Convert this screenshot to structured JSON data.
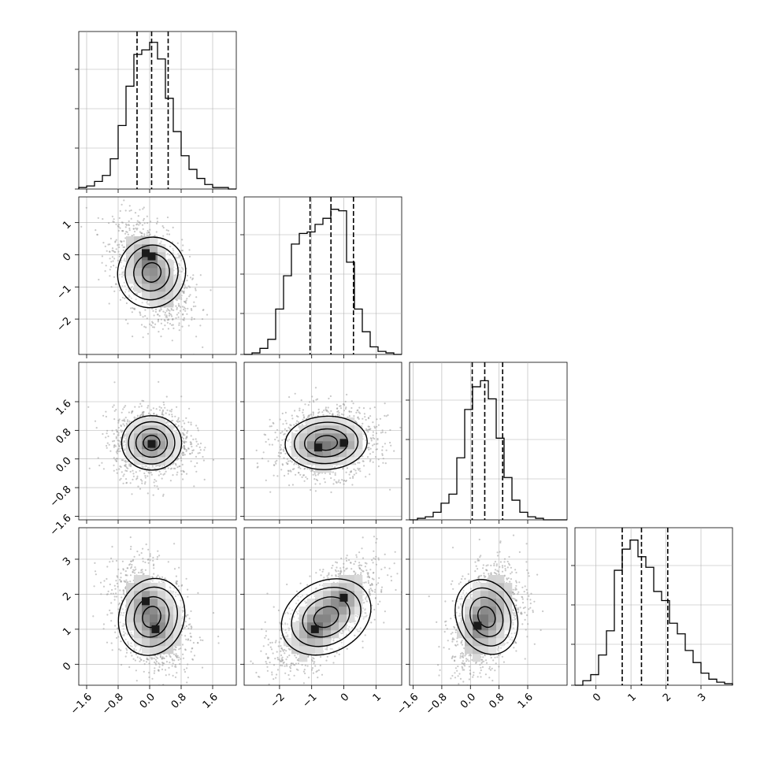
{
  "chart_data": {
    "type": "corner",
    "description_of_layout": "4x4 lower-triangular corner plot; diagonal = 1D histograms with 16/50/84% dashed quantiles; off-diagonal = 2D density with scatter and contours",
    "params": [
      {
        "id": "p0",
        "range": [
          -1.8,
          2.2
        ],
        "mean": 0.05,
        "std": 0.38,
        "quantiles": [
          -0.32,
          0.05,
          0.47
        ],
        "ticks": [
          -1.6,
          -0.8,
          0.0,
          0.8,
          1.6
        ],
        "tick_labels": [
          "−1.6",
          "−0.8",
          "0.0",
          "0.8",
          "1.6"
        ],
        "hist_bins": [
          0.01,
          0.02,
          0.05,
          0.09,
          0.2,
          0.42,
          0.68,
          0.89,
          0.92,
          0.97,
          0.86,
          0.6,
          0.38,
          0.22,
          0.13,
          0.07,
          0.03,
          0.01,
          0.01,
          0.0
        ]
      },
      {
        "id": "p1",
        "range": [
          -3.1,
          1.8
        ],
        "mean": -0.55,
        "std": 0.62,
        "quantiles": [
          -1.05,
          -0.4,
          0.3
        ],
        "ticks": [
          -2,
          -1,
          0,
          1
        ],
        "tick_labels": [
          "−2",
          "−1",
          "0",
          "1"
        ],
        "hist_bins": [
          0.0,
          0.01,
          0.04,
          0.1,
          0.3,
          0.52,
          0.73,
          0.8,
          0.81,
          0.86,
          0.9,
          0.96,
          0.95,
          0.61,
          0.3,
          0.15,
          0.05,
          0.02,
          0.01,
          0.0
        ]
      },
      {
        "id": "p2",
        "range": [
          -1.7,
          2.7
        ],
        "mean": 0.45,
        "std": 0.38,
        "quantiles": [
          0.05,
          0.4,
          0.9
        ],
        "ticks": [
          -1.6,
          -0.8,
          0.0,
          0.8,
          1.6
        ],
        "tick_labels": [
          "−1.6",
          "−0.8",
          "0.0",
          "0.8",
          "1.6"
        ],
        "hist_bins": [
          0.0,
          0.01,
          0.02,
          0.05,
          0.11,
          0.17,
          0.41,
          0.73,
          0.88,
          0.92,
          0.8,
          0.54,
          0.28,
          0.13,
          0.05,
          0.02,
          0.01,
          0.0,
          0.0,
          0.0
        ]
      },
      {
        "id": "p3",
        "range": [
          -0.6,
          3.9
        ],
        "mean": 1.35,
        "std": 0.6,
        "quantiles": [
          0.75,
          1.3,
          2.05
        ],
        "ticks": [
          0,
          1,
          2,
          3
        ],
        "tick_labels": [
          "0",
          "1",
          "2",
          "3"
        ],
        "hist_bins": [
          0.0,
          0.03,
          0.07,
          0.2,
          0.36,
          0.76,
          0.9,
          0.96,
          0.85,
          0.78,
          0.62,
          0.56,
          0.41,
          0.34,
          0.23,
          0.15,
          0.08,
          0.04,
          0.02,
          0.01
        ]
      }
    ],
    "pairs": [
      {
        "x": "p0",
        "y": "p1",
        "correlation": -0.45,
        "modes": [
          {
            "x": -0.1,
            "y": 0.05
          },
          {
            "x": 0.05,
            "y": -0.05
          }
        ]
      },
      {
        "x": "p0",
        "y": "p2",
        "correlation": 0.0,
        "modes": [
          {
            "x": 0.05,
            "y": 0.42
          }
        ]
      },
      {
        "x": "p1",
        "y": "p2",
        "correlation": 0.1,
        "modes": [
          {
            "x": -0.8,
            "y": 0.32
          },
          {
            "x": 0.0,
            "y": 0.45
          }
        ]
      },
      {
        "x": "p0",
        "y": "p3",
        "correlation": -0.3,
        "modes": [
          {
            "x": 0.15,
            "y": 1.0
          },
          {
            "x": -0.1,
            "y": 1.8
          }
        ]
      },
      {
        "x": "p1",
        "y": "p3",
        "correlation": 0.65,
        "modes": [
          {
            "x": -0.9,
            "y": 1.0
          },
          {
            "x": 0.0,
            "y": 1.9
          }
        ]
      },
      {
        "x": "p2",
        "y": "p3",
        "correlation": 0.35,
        "modes": [
          {
            "x": 0.2,
            "y": 1.1
          }
        ]
      }
    ],
    "histogram_y_ticks": 4,
    "grid": true,
    "colors": {
      "line": "#000000",
      "scatter": "#9a9a9a",
      "grid": "#b0b0b0",
      "density_dark": "#1a1a1a"
    }
  }
}
